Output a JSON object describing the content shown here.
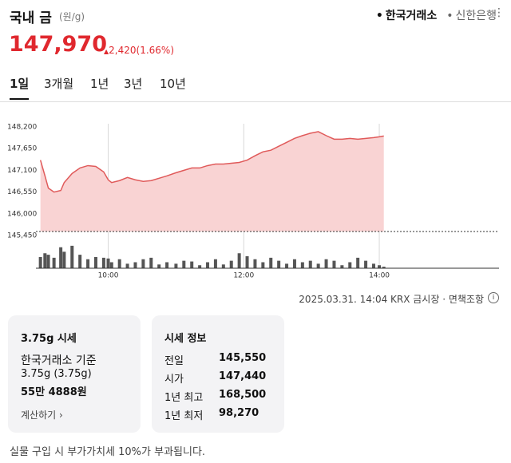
{
  "header": {
    "title": "국내 금",
    "unit": "(원/g)",
    "sources": [
      "한국거래소",
      "신한은행"
    ],
    "selected_source": 0
  },
  "price": {
    "value": "147,970",
    "change": "2,420(1.66%)"
  },
  "tabs": {
    "items": [
      "1일",
      "3개월",
      "1년",
      "3년",
      "10년"
    ],
    "active": 0
  },
  "chart_data": {
    "type": "area",
    "color": "#e05a5a",
    "fill": "#f9d3d3",
    "x": [
      540,
      544,
      547,
      552,
      558,
      561,
      568,
      575,
      582,
      589,
      596,
      600,
      603,
      610,
      617,
      624,
      631,
      638,
      645,
      652,
      660,
      667,
      674,
      681,
      688,
      695,
      702,
      709,
      716,
      723,
      730,
      737,
      744,
      751,
      758,
      765,
      772,
      779,
      786,
      793,
      800,
      807,
      814,
      821,
      828,
      835,
      840,
      844
    ],
    "values": [
      147360,
      146960,
      146650,
      146550,
      146590,
      146790,
      147020,
      147160,
      147220,
      147200,
      147060,
      146860,
      146790,
      146840,
      146920,
      146860,
      146820,
      146840,
      146900,
      146960,
      147040,
      147100,
      147160,
      147160,
      147220,
      147260,
      147260,
      147280,
      147300,
      147360,
      147470,
      147570,
      147610,
      147710,
      147810,
      147910,
      147980,
      148040,
      148080,
      147980,
      147890,
      147890,
      147910,
      147890,
      147910,
      147930,
      147950,
      147970
    ],
    "reference_line": 145550,
    "xlim": [
      536,
      946
    ],
    "ylim": [
      145450,
      148200
    ],
    "xticks": [
      {
        "value": 600,
        "label": "10:00"
      },
      {
        "value": 720,
        "label": "12:00"
      },
      {
        "value": 840,
        "label": "14:00"
      }
    ],
    "yticks": [
      {
        "value": 148200,
        "label": "148,200"
      },
      {
        "value": 147650,
        "label": "147,650"
      },
      {
        "value": 147100,
        "label": "147,100"
      },
      {
        "value": 146550,
        "label": "146,550"
      },
      {
        "value": 146000,
        "label": "146,000"
      },
      {
        "value": 145450,
        "label": "145,450"
      }
    ],
    "volume": {
      "color": "#555555",
      "values": [
        15,
        20,
        18,
        14,
        28,
        22,
        30,
        18,
        12,
        15,
        14,
        13,
        8,
        12,
        6,
        8,
        12,
        14,
        5,
        8,
        6,
        10,
        9,
        4,
        8,
        12,
        5,
        10,
        20,
        16,
        12,
        8,
        14,
        10,
        6,
        12,
        8,
        10,
        6,
        12,
        10,
        4,
        8,
        14,
        10,
        6,
        4,
        2
      ],
      "ylim": [
        0,
        32
      ]
    }
  },
  "timestamp": "2025.03.31. 14:04 KRX 금시장 · 면책조항",
  "cards": [
    {
      "title": "3.75g 시세",
      "lines": [
        "한국거래소 기준",
        "3.75g (3.75g)",
        "55만 4888원"
      ],
      "link": "계산하기"
    },
    {
      "title": "시세 정보",
      "rows": [
        [
          "전일",
          "145,550"
        ],
        [
          "시가",
          "147,440"
        ],
        [
          "1년 최고",
          "168,500"
        ],
        [
          "1년 최저",
          "98,270"
        ]
      ]
    }
  ],
  "footer": "실물 구입 시 부가가치세 10%가 부과됩니다."
}
